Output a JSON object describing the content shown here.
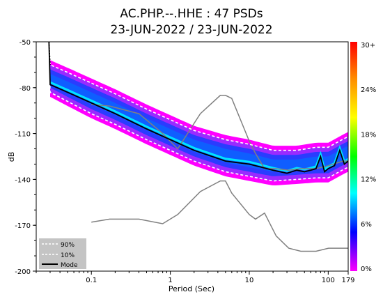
{
  "chart_data": {
    "type": "heatmap",
    "title_line1": "AC.PHP.--.HHE : 47 PSDs",
    "title_line2": "23-JUN-2022 / 23-JUN-2022",
    "xlabel": "Period (Sec)",
    "ylabel": "dB",
    "x_scale": "log",
    "xlim": [
      0.02,
      179
    ],
    "ylim": [
      -200,
      -50
    ],
    "x_ticks": [
      {
        "value": 0.1,
        "label": "0.1"
      },
      {
        "value": 1,
        "label": "1"
      },
      {
        "value": 10,
        "label": "10"
      },
      {
        "value": 100,
        "label": "100"
      },
      {
        "value": 179,
        "label": "179"
      }
    ],
    "y_ticks": [
      {
        "value": -50,
        "label": "-50"
      },
      {
        "value": -80,
        "label": "-80"
      },
      {
        "value": -110,
        "label": "-110"
      },
      {
        "value": -140,
        "label": "-140"
      },
      {
        "value": -170,
        "label": "-170"
      },
      {
        "value": -200,
        "label": "-200"
      }
    ],
    "colorbar": {
      "ticks": [
        "30+",
        "24%",
        "18%",
        "12%",
        "6%",
        "0%"
      ],
      "colors": [
        "#ff0000",
        "#ff8c00",
        "#ffff00",
        "#00ff00",
        "#00ffff",
        "#0000ff",
        "#ff00ff"
      ]
    },
    "legend": {
      "position": "bottom-left",
      "entries": [
        {
          "label": "90%",
          "style": "dashed-white"
        },
        {
          "label": "10%",
          "style": "dashed-white"
        },
        {
          "label": "Mode",
          "style": "solid-black"
        }
      ]
    },
    "nhnm": {
      "x": [
        0.1,
        0.17,
        0.4,
        0.8,
        1.24,
        2.4,
        4.3,
        5.0,
        6.0,
        10.0,
        12.0,
        15.6,
        21.9,
        31.6,
        45.0,
        70.0,
        101.0,
        154.0,
        179.0
      ],
      "y": [
        -91,
        -92,
        -97,
        -110,
        -120,
        -97,
        -85,
        -85,
        -87,
        -115,
        -123,
        -133,
        -133,
        -134,
        -133,
        -133,
        -131,
        -128,
        -128
      ]
    },
    "nlnm": {
      "x": [
        0.1,
        0.17,
        0.4,
        0.8,
        1.24,
        2.4,
        4.3,
        5.0,
        6.0,
        10.0,
        12.0,
        15.6,
        21.9,
        31.6,
        45.0,
        70.0,
        101.0,
        154.0,
        179.0
      ],
      "y": [
        -168,
        -166,
        -166,
        -169,
        -163,
        -148,
        -141,
        -141,
        -149,
        -163,
        -166,
        -162,
        -177,
        -185,
        -187,
        -187,
        -185,
        -185,
        -185
      ]
    },
    "mode": {
      "x": [
        0.029,
        0.03,
        0.05,
        0.1,
        0.2,
        0.5,
        1,
        2,
        5,
        10,
        20,
        30,
        40,
        50,
        60,
        70,
        80,
        90,
        100,
        120,
        140,
        160,
        179
      ],
      "y": [
        -50,
        -78,
        -83,
        -90,
        -97,
        -107,
        -114,
        -121,
        -128,
        -130,
        -134,
        -136,
        -134,
        -135,
        -134,
        -133,
        -125,
        -135,
        -133,
        -131,
        -121,
        -130,
        -128
      ]
    },
    "p90": {
      "x": [
        0.029,
        0.03,
        0.05,
        0.1,
        0.2,
        0.5,
        1,
        2,
        5,
        10,
        20,
        40,
        70,
        100,
        150,
        179
      ],
      "y": [
        -50,
        -65,
        -70,
        -77,
        -84,
        -94,
        -101,
        -108,
        -114,
        -117,
        -121,
        -121,
        -119,
        -119,
        -114,
        -112
      ]
    },
    "p10": {
      "x": [
        0.029,
        0.03,
        0.05,
        0.1,
        0.2,
        0.5,
        1,
        2,
        5,
        10,
        20,
        40,
        70,
        100,
        150,
        179
      ],
      "y": [
        -50,
        -83,
        -89,
        -97,
        -104,
        -114,
        -121,
        -128,
        -135,
        -138,
        -141,
        -140,
        -139,
        -139,
        -134,
        -132
      ]
    }
  }
}
